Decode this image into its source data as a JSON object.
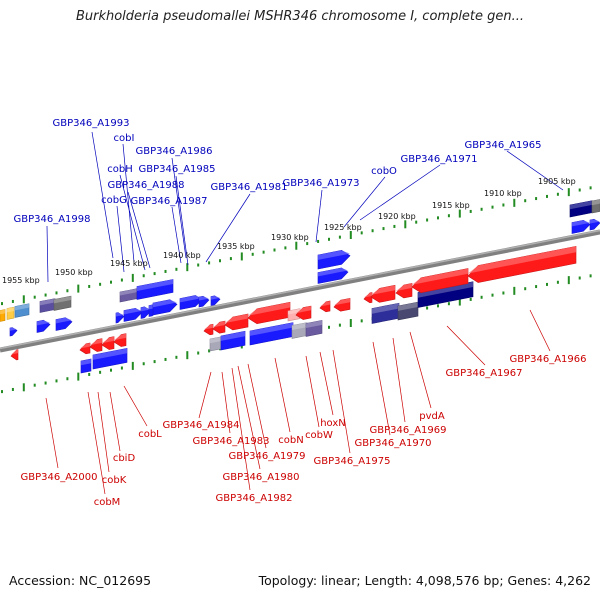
{
  "title": "Burkholderia pseudomallei MSHR346 chromosome I, complete gen...",
  "footer": {
    "accession": "Accession: NC_012695",
    "topology": "Topology: linear; Length: 4,098,576 bp; Genes: 4,262"
  },
  "colors": {
    "forward_gene": "#1a1aff",
    "reverse_gene": "#ff1a1a",
    "forward_label": "#0000bb",
    "reverse_label": "#cc0000",
    "backbone": "#808080",
    "tick": "#228b22",
    "operon_navy": "#000080",
    "operon_grey": "#808080"
  },
  "kbp_labels": [
    "1955 kbp",
    "1950 kbp",
    "1945 kbp",
    "1940 kbp",
    "1935 kbp",
    "1930 kbp",
    "1925 kbp",
    "1920 kbp",
    "1915 kbp",
    "1910 kbp",
    "1905 kbp"
  ],
  "forward_labels": [
    "GBP346_A1993",
    "cobI",
    "GBP346_A1986",
    "cobH",
    "GBP346_A1985",
    "GBP346_A1988",
    "cobG",
    "GBP346_A1987",
    "GBP346_A1998",
    "GBP346_A1981",
    "GBP346_A1973",
    "cobO",
    "GBP346_A1971",
    "GBP346_A1965"
  ],
  "reverse_labels": [
    "GBP346_A1966",
    "GBP346_A1967",
    "pvdA",
    "GBP346_A1969",
    "GBP346_A1970",
    "GBP346_A1975",
    "hoxN",
    "cobW",
    "cobN",
    "GBP346_A1979",
    "GBP346_A1980",
    "GBP346_A1982",
    "GBP346_A1983",
    "GBP346_A1984",
    "cobL",
    "cbiD",
    "cobK",
    "cobM",
    "GBP346_A2000"
  ]
}
